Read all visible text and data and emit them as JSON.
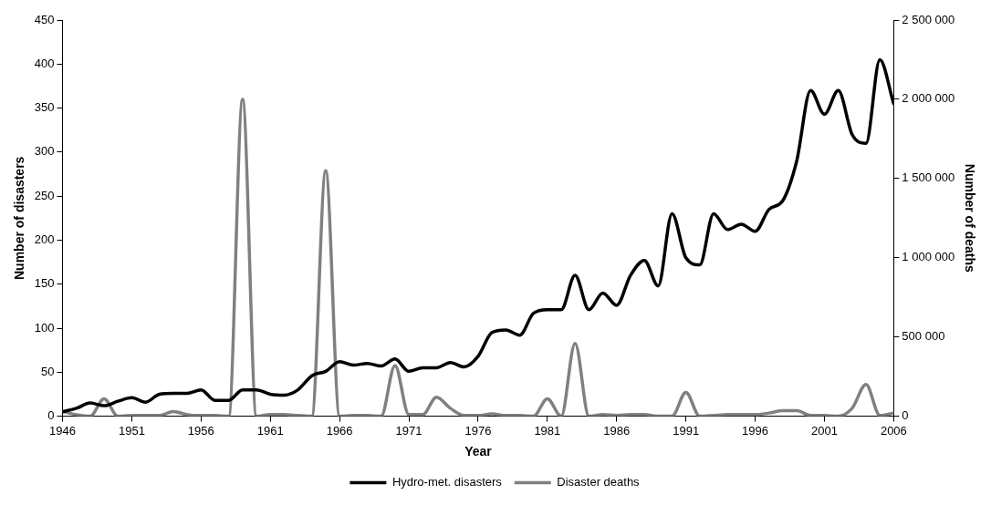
{
  "chart_data": {
    "type": "line",
    "xlabel": "Year",
    "ylabel": "Number of disasters",
    "y2label": "Number of deaths",
    "x": [
      1946,
      1947,
      1948,
      1949,
      1950,
      1951,
      1952,
      1953,
      1954,
      1955,
      1956,
      1957,
      1958,
      1959,
      1960,
      1961,
      1962,
      1963,
      1964,
      1965,
      1966,
      1967,
      1968,
      1969,
      1970,
      1971,
      1972,
      1973,
      1974,
      1975,
      1976,
      1977,
      1978,
      1979,
      1980,
      1981,
      1982,
      1983,
      1984,
      1985,
      1986,
      1987,
      1988,
      1989,
      1990,
      1991,
      1992,
      1993,
      1994,
      1995,
      1996,
      1997,
      1998,
      1999,
      2000,
      2001,
      2002,
      2003,
      2004,
      2005,
      2006
    ],
    "series": [
      {
        "name": "Hydro-met. disasters",
        "color": "#000000",
        "values": [
          5,
          9,
          15,
          12,
          17,
          21,
          16,
          25,
          26,
          26,
          30,
          18,
          18,
          30,
          30,
          25,
          24,
          30,
          46,
          51,
          62,
          58,
          60,
          57,
          65,
          51,
          55,
          55,
          61,
          56,
          68,
          95,
          98,
          92,
          117,
          121,
          121,
          160,
          121,
          140,
          126,
          160,
          177,
          148,
          230,
          180,
          172,
          230,
          212,
          218,
          210,
          235,
          245,
          290,
          370,
          343,
          370,
          320,
          310,
          405,
          355
        ]
      },
      {
        "name": "Disaster deaths",
        "color": "#808080",
        "axis": "y2",
        "values": [
          30000,
          10000,
          0,
          110000,
          0,
          5000,
          5000,
          5000,
          30000,
          10000,
          5000,
          5000,
          0,
          2000000,
          0,
          10000,
          10000,
          5000,
          0,
          1550000,
          0,
          5000,
          5000,
          0,
          320000,
          10000,
          10000,
          120000,
          50000,
          5000,
          5000,
          15000,
          5000,
          5000,
          0,
          110000,
          0,
          460000,
          0,
          10000,
          5000,
          10000,
          10000,
          0,
          0,
          150000,
          0,
          5000,
          10000,
          10000,
          10000,
          20000,
          35000,
          35000,
          5000,
          5000,
          0,
          50000,
          200000,
          5000,
          20000
        ]
      }
    ],
    "xlim": [
      1946,
      2006
    ],
    "xticks": [
      1946,
      1951,
      1956,
      1961,
      1966,
      1971,
      1976,
      1981,
      1986,
      1991,
      1996,
      2001,
      2006
    ],
    "ylim": [
      0,
      450
    ],
    "yticks": [
      0,
      50,
      100,
      150,
      200,
      250,
      300,
      350,
      400,
      450
    ],
    "y2lim": [
      0,
      2500000
    ],
    "y2ticks": [
      {
        "value": 0,
        "label": "0"
      },
      {
        "value": 500000,
        "label": "500 000"
      },
      {
        "value": 1000000,
        "label": "1 000 000"
      },
      {
        "value": 1500000,
        "label": "1 500 000"
      },
      {
        "value": 2000000,
        "label": "2 000 000"
      },
      {
        "value": 2500000,
        "label": "2 500 000"
      }
    ],
    "grid": false,
    "legend": "bottom",
    "marker": "none",
    "line_style": "solid"
  }
}
